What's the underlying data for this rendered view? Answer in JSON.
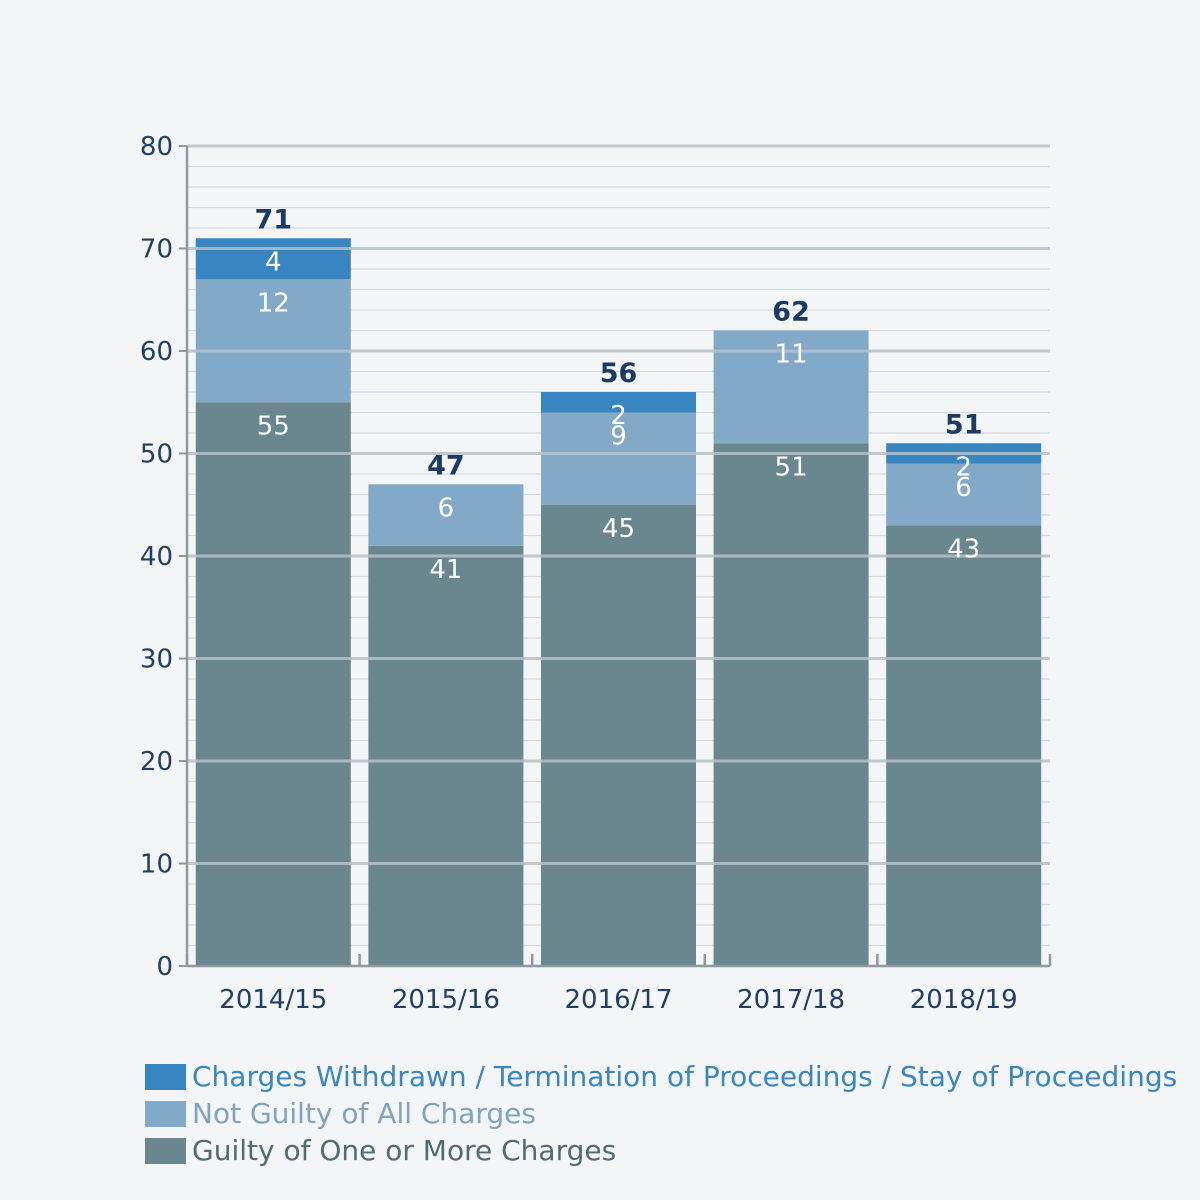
{
  "chart_data": {
    "type": "bar",
    "stacked": true,
    "categories": [
      "2014/15",
      "2015/16",
      "2016/17",
      "2017/18",
      "2018/19"
    ],
    "series": [
      {
        "name": "Guilty of One or More Charges",
        "values": [
          55,
          41,
          45,
          51,
          43
        ],
        "color": "#6a8790",
        "legend_text_color": "#4f6b73"
      },
      {
        "name": "Not Guilty of All Charges",
        "values": [
          12,
          6,
          9,
          11,
          6
        ],
        "color": "#82a9c7",
        "legend_text_color": "#7fa3c1"
      },
      {
        "name": "Charges Withdrawn / Termination of Proceedings / Stay of Proceedings",
        "values": [
          4,
          0,
          2,
          0,
          2
        ],
        "color": "#3786c2",
        "legend_text_color": "#3a86c4"
      }
    ],
    "totals": [
      71,
      47,
      56,
      62,
      51
    ],
    "ylim": [
      0,
      80
    ],
    "yticks": [
      0,
      10,
      20,
      30,
      40,
      50,
      60,
      70,
      80
    ],
    "grid": true,
    "legend_position": "bottom-left",
    "title": "",
    "xlabel": "",
    "ylabel": ""
  }
}
